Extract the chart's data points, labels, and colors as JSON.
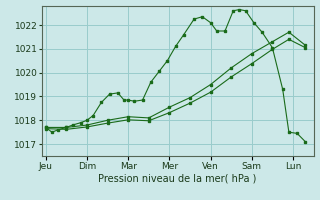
{
  "bg_color": "#cce8e8",
  "grid_color": "#99cccc",
  "line_color": "#1a6b1a",
  "marker_color": "#1a6b1a",
  "xlabel": "Pression niveau de la mer( hPa )",
  "xlabel_fontsize": 7,
  "tick_fontsize": 6.5,
  "ylim": [
    1016.5,
    1022.8
  ],
  "yticks": [
    1017,
    1018,
    1019,
    1020,
    1021,
    1022
  ],
  "xlabels": [
    "Jeu",
    "Dim",
    "Mar",
    "Mer",
    "Ven",
    "Sam",
    "Lun"
  ],
  "xtick_positions": [
    0,
    1,
    2,
    3,
    4,
    5,
    6
  ],
  "line1_x": [
    0.0,
    0.15,
    0.3,
    0.5,
    0.65,
    0.85,
    1.0,
    1.15,
    1.35,
    1.55,
    1.75,
    1.9,
    2.0,
    2.15,
    2.35,
    2.55,
    2.75,
    2.95,
    3.15,
    3.35,
    3.6,
    3.8,
    4.0,
    4.15,
    4.35,
    4.55,
    4.7,
    4.85,
    5.05,
    5.25,
    5.5,
    5.75,
    5.9,
    6.1,
    6.3
  ],
  "line1_y": [
    1017.7,
    1017.5,
    1017.6,
    1017.7,
    1017.8,
    1017.9,
    1018.0,
    1018.2,
    1018.75,
    1019.1,
    1019.15,
    1018.85,
    1018.85,
    1018.8,
    1018.85,
    1019.6,
    1020.05,
    1020.5,
    1021.1,
    1021.6,
    1022.25,
    1022.35,
    1022.1,
    1021.75,
    1021.75,
    1022.6,
    1022.65,
    1022.6,
    1022.1,
    1021.7,
    1021.05,
    1019.3,
    1017.5,
    1017.45,
    1017.1
  ],
  "line2_x": [
    0.0,
    0.5,
    1.0,
    1.5,
    2.0,
    2.5,
    3.0,
    3.5,
    4.0,
    4.5,
    5.0,
    5.5,
    5.9,
    6.3
  ],
  "line2_y": [
    1017.7,
    1017.7,
    1017.8,
    1018.0,
    1018.15,
    1018.1,
    1018.55,
    1018.95,
    1019.5,
    1020.2,
    1020.8,
    1021.3,
    1021.7,
    1021.15
  ],
  "line3_x": [
    0.0,
    0.5,
    1.0,
    1.5,
    2.0,
    2.5,
    3.0,
    3.5,
    4.0,
    4.5,
    5.0,
    5.5,
    5.9,
    6.3
  ],
  "line3_y": [
    1017.65,
    1017.62,
    1017.72,
    1017.88,
    1018.02,
    1017.98,
    1018.32,
    1018.72,
    1019.18,
    1019.82,
    1020.38,
    1020.98,
    1021.4,
    1021.05
  ]
}
